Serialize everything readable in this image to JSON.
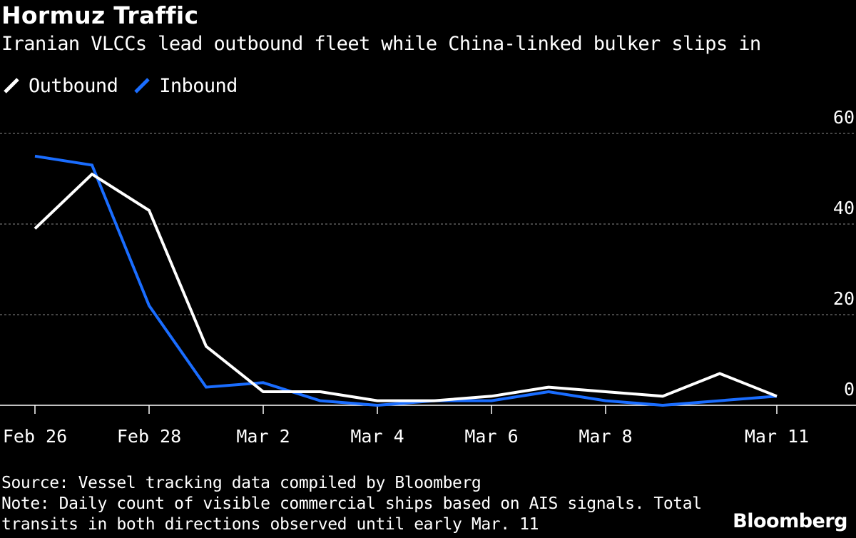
{
  "title": "Hormuz Traffic",
  "subtitle": "Iranian VLCCs lead outbound fleet while China-linked bulker slips in",
  "legend": [
    {
      "label": "Outbound",
      "color": "#ffffff"
    },
    {
      "label": "Inbound",
      "color": "#1a6dff"
    }
  ],
  "chart_data": {
    "type": "line",
    "x": [
      "Feb 26",
      "Feb 27",
      "Feb 28",
      "Mar 1",
      "Mar 2",
      "Mar 3",
      "Mar 4",
      "Mar 5",
      "Mar 6",
      "Mar 7",
      "Mar 8",
      "Mar 9",
      "Mar 10",
      "Mar 11"
    ],
    "x_tick_labels": [
      "Feb 26",
      "Feb 28",
      "Mar 2",
      "Mar 4",
      "Mar 6",
      "Mar 8",
      "Mar 11"
    ],
    "x_tick_indices": [
      0,
      2,
      4,
      6,
      8,
      10,
      13
    ],
    "series": [
      {
        "name": "Outbound",
        "color": "#ffffff",
        "values": [
          39,
          51,
          43,
          13,
          3,
          3,
          1,
          1,
          2,
          4,
          3,
          2,
          7,
          2
        ]
      },
      {
        "name": "Inbound",
        "color": "#1a6dff",
        "values": [
          55,
          53,
          22,
          4,
          5,
          1,
          0,
          1,
          1,
          3,
          1,
          0,
          1,
          2
        ]
      }
    ],
    "y_ticks": [
      "60",
      "40",
      "20",
      "0"
    ],
    "ylim": [
      0,
      60
    ],
    "grid": true,
    "xlabel": "",
    "ylabel": ""
  },
  "footer": {
    "source": "Source: Vessel tracking data compiled by Bloomberg",
    "note_line1": "Note: Daily count of visible commercial ships based on AIS signals. Total",
    "note_line2": "transits in both directions observed until early Mar. 11"
  },
  "brand": "Bloomberg"
}
